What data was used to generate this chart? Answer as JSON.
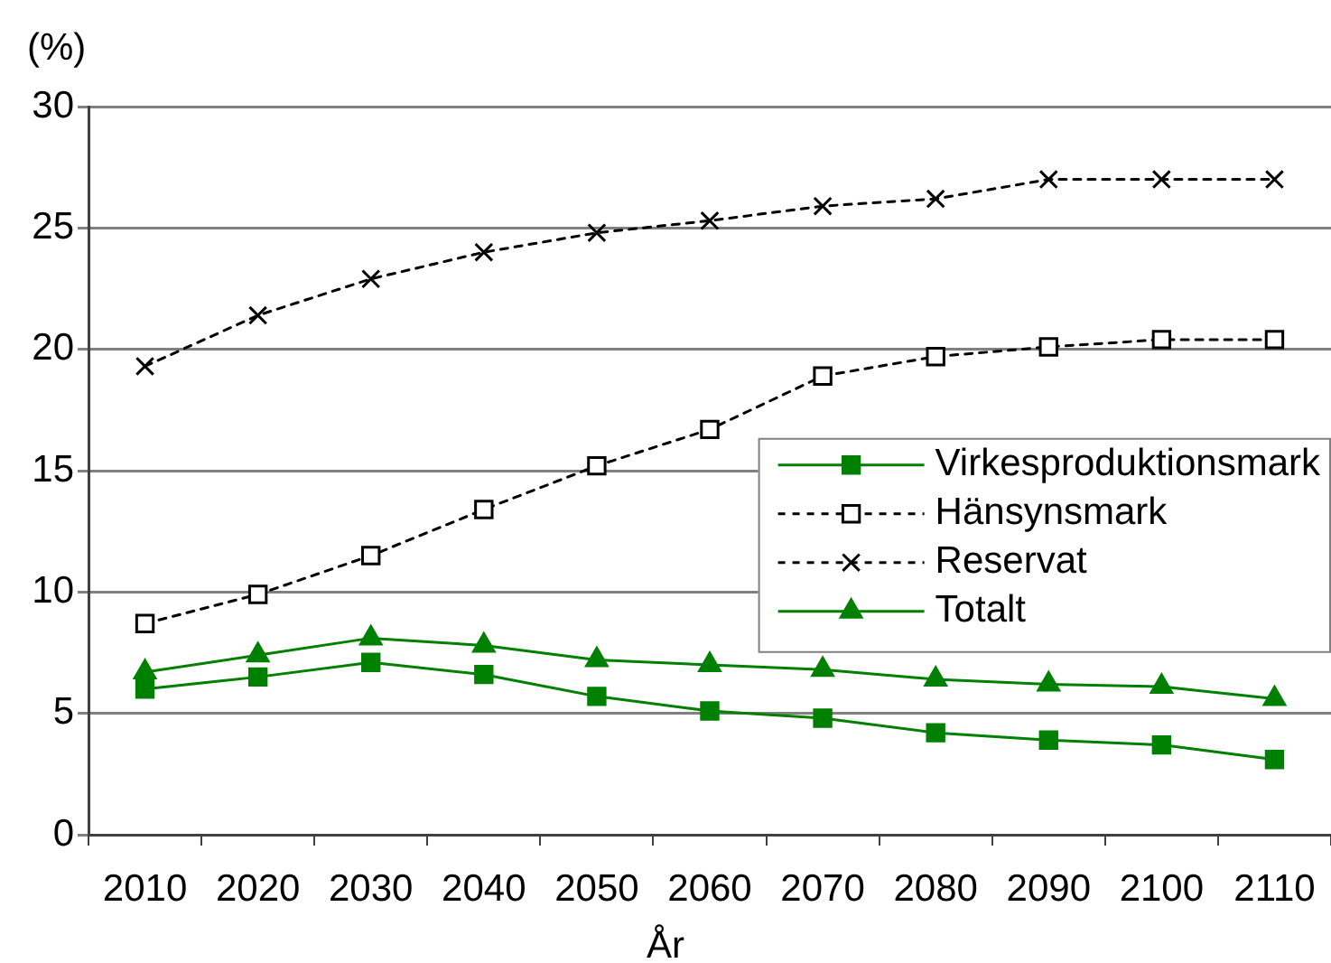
{
  "chart_data": {
    "type": "line",
    "ylabel": "(%)",
    "xlabel": "År",
    "categories": [
      "2010",
      "2020",
      "2030",
      "2040",
      "2050",
      "2060",
      "2070",
      "2080",
      "2090",
      "2100",
      "2110"
    ],
    "ylim": [
      0,
      30
    ],
    "yticks": [
      0,
      5,
      10,
      15,
      20,
      25,
      30
    ],
    "grid": "y",
    "legend": "right",
    "series": [
      {
        "name": "Virkesproduktionsmark",
        "color": "#008000",
        "marker": "square",
        "line_style": "solid",
        "values": [
          6.0,
          6.5,
          7.1,
          6.6,
          5.7,
          5.1,
          4.8,
          4.2,
          3.9,
          3.7,
          3.1
        ]
      },
      {
        "name": "Hänsynsmark",
        "color": "#000000",
        "marker": "square",
        "line_style": "dashed",
        "values": [
          8.7,
          9.9,
          11.5,
          13.4,
          15.2,
          16.7,
          18.9,
          19.7,
          20.1,
          20.4,
          20.4
        ]
      },
      {
        "name": "Reservat",
        "color": "#000000",
        "marker": "cross",
        "line_style": "dashed",
        "values": [
          19.3,
          21.4,
          22.9,
          24.0,
          24.8,
          25.3,
          25.9,
          26.2,
          27.0,
          27.0,
          27.0
        ]
      },
      {
        "name": "Totalt",
        "color": "#008000",
        "marker": "triangle",
        "line_style": "solid",
        "values": [
          6.7,
          7.4,
          8.1,
          7.8,
          7.2,
          7.0,
          6.8,
          6.4,
          6.2,
          6.1,
          5.6
        ]
      }
    ]
  }
}
